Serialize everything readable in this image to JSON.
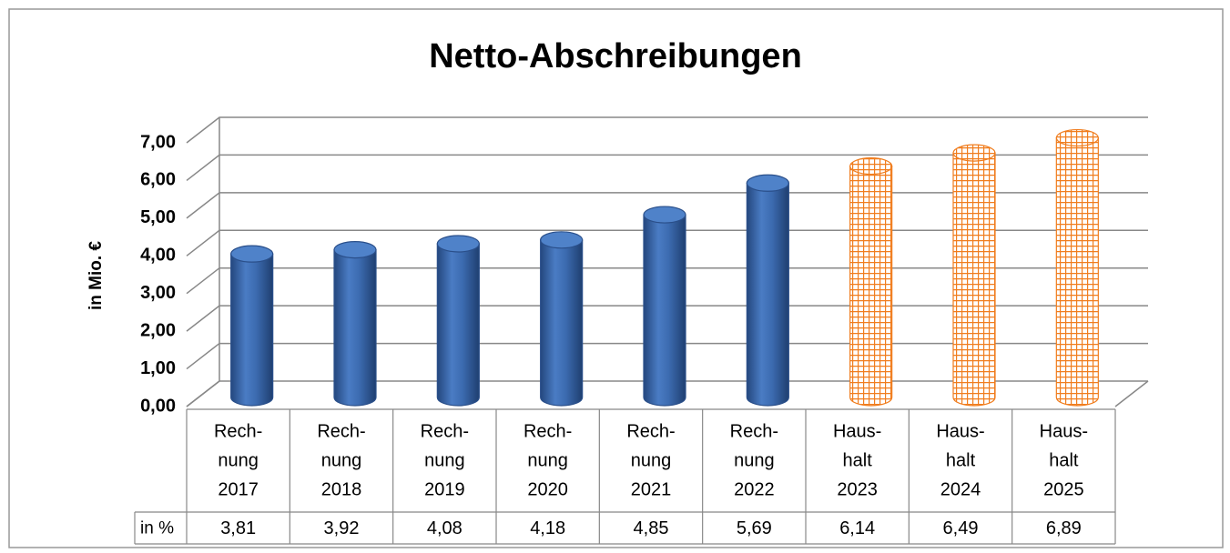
{
  "chart_data": {
    "type": "bar3d",
    "title": "Netto-Abschreibungen",
    "ylabel": "in Mio. €",
    "categories": [
      [
        "Rech-",
        "nung",
        "2017"
      ],
      [
        "Rech-",
        "nung",
        "2018"
      ],
      [
        "Rech-",
        "nung",
        "2019"
      ],
      [
        "Rech-",
        "nung",
        "2020"
      ],
      [
        "Rech-",
        "nung",
        "2021"
      ],
      [
        "Rech-",
        "nung",
        "2022"
      ],
      [
        "Haus-",
        "halt",
        "2023"
      ],
      [
        "Haus-",
        "halt",
        "2024"
      ],
      [
        "Haus-",
        "halt",
        "2025"
      ]
    ],
    "values": [
      3.81,
      3.92,
      4.08,
      4.18,
      4.85,
      5.69,
      6.14,
      6.49,
      6.89
    ],
    "value_labels": [
      "3,81",
      "3,92",
      "4,08",
      "4,18",
      "4,85",
      "5,69",
      "6,14",
      "6,49",
      "6,89"
    ],
    "colors": [
      "#3f6fb5",
      "#3f6fb5",
      "#3f6fb5",
      "#3f6fb5",
      "#3f6fb5",
      "#3f6fb5",
      "#f07d1e",
      "#f07d1e",
      "#f07d1e"
    ],
    "table_row_label": "in %",
    "ylim": [
      0,
      7
    ],
    "yticks": [
      {
        "value": 0,
        "label": "0,00"
      },
      {
        "value": 1,
        "label": "1,00"
      },
      {
        "value": 2,
        "label": "2,00"
      },
      {
        "value": 3,
        "label": "3,00"
      },
      {
        "value": 4,
        "label": "4,00"
      },
      {
        "value": 5,
        "label": "5,00"
      },
      {
        "value": 6,
        "label": "6,00"
      },
      {
        "value": 7,
        "label": "7,00"
      }
    ],
    "grid": true
  }
}
